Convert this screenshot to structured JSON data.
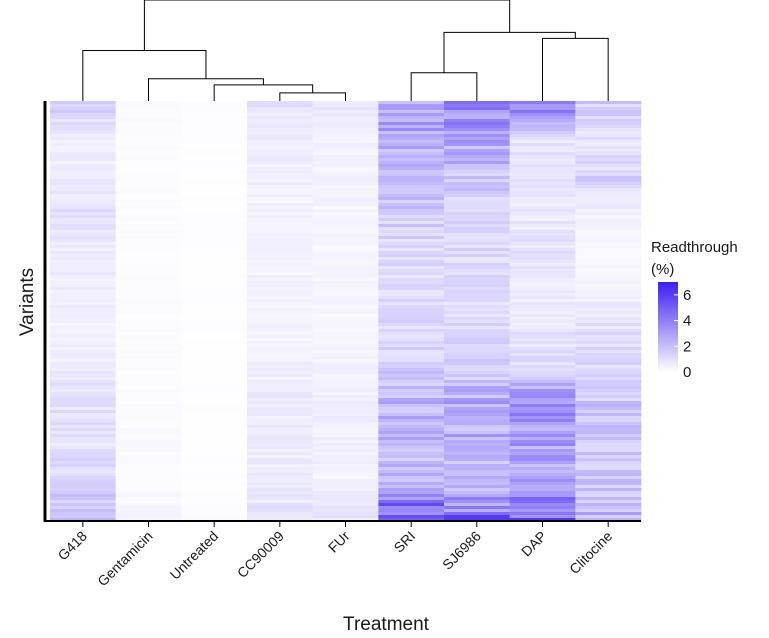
{
  "chart_data": {
    "type": "heatmap",
    "xlabel": "Treatment",
    "ylabel": "Variants",
    "categories": [
      "G418",
      "Gentamicin",
      "Untreated",
      "CC90009",
      "FUr",
      "SRI",
      "SJ6986",
      "DAP",
      "Clitocine"
    ],
    "legend": {
      "title_line1": "Readthrough",
      "title_line2": "(%)",
      "ticks": [
        6,
        4,
        2,
        0
      ],
      "range": [
        0,
        7
      ],
      "color_low": "#ffffff",
      "color_high": "#3b1ff0",
      "position": "right"
    },
    "row_count": 140,
    "series": [
      {
        "name": "G418",
        "mean_value": 0.7,
        "values_profile": [
          1.5,
          0.5,
          0.6,
          0.9,
          0.6,
          0.6,
          0.4,
          0.6,
          1.0,
          0.9,
          1.3,
          2.0
        ]
      },
      {
        "name": "Gentamicin",
        "mean_value": 0.1,
        "values_profile": [
          0.2,
          0.1,
          0.1,
          0.1,
          0.1,
          0.1,
          0.1,
          0.1,
          0.1,
          0.2,
          0.1,
          0.4
        ]
      },
      {
        "name": "Untreated",
        "mean_value": 0.05,
        "values_profile": [
          0.1,
          0.05,
          0.05,
          0.05,
          0.05,
          0.05,
          0.05,
          0.05,
          0.05,
          0.05,
          0.05,
          0.1
        ]
      },
      {
        "name": "CC90009",
        "mean_value": 0.5,
        "values_profile": [
          0.9,
          0.5,
          0.5,
          0.4,
          0.4,
          0.4,
          0.4,
          0.5,
          0.7,
          0.6,
          0.6,
          0.9
        ]
      },
      {
        "name": "FUr",
        "mean_value": 0.4,
        "values_profile": [
          0.8,
          0.4,
          0.4,
          0.3,
          0.3,
          0.3,
          0.3,
          0.4,
          0.5,
          0.5,
          0.4,
          0.8
        ]
      },
      {
        "name": "SRI",
        "mean_value": 2.0,
        "values_profile": [
          3.2,
          2.8,
          2.2,
          1.6,
          1.2,
          1.1,
          1.3,
          1.6,
          2.4,
          2.2,
          2.0,
          6.0
        ]
      },
      {
        "name": "SJ6986",
        "mean_value": 2.0,
        "values_profile": [
          3.4,
          3.0,
          1.8,
          1.4,
          1.2,
          1.0,
          1.2,
          1.4,
          2.8,
          2.4,
          2.0,
          4.8
        ]
      },
      {
        "name": "DAP",
        "mean_value": 1.6,
        "values_profile": [
          4.2,
          0.8,
          0.8,
          0.7,
          0.9,
          0.6,
          0.8,
          1.2,
          3.4,
          3.0,
          2.6,
          4.8
        ]
      },
      {
        "name": "Clitocine",
        "mean_value": 1.3,
        "values_profile": [
          1.6,
          0.8,
          1.4,
          0.4,
          0.2,
          0.4,
          1.0,
          1.2,
          1.8,
          1.8,
          1.8,
          2.4
        ]
      }
    ],
    "dendrogram": {
      "leaves": [
        "G418",
        "Gentamicin",
        "Untreated",
        "CC90009",
        "FUr",
        "SRI",
        "SJ6986",
        "DAP",
        "Clitocine"
      ],
      "merges": [
        {
          "left": "CC90009",
          "right": "FUr",
          "height": 0.08
        },
        {
          "left": "Untreated",
          "right": "CC90009+FUr",
          "height": 0.16
        },
        {
          "left": "Gentamicin",
          "right": "Untreated+CC90009+FUr",
          "height": 0.22
        },
        {
          "left": "G418",
          "right": "Gentamicin+Untreated+CC90009+FUr",
          "height": 0.5
        },
        {
          "left": "SRI",
          "right": "SJ6986",
          "height": 0.28
        },
        {
          "left": "DAP",
          "right": "Clitocine",
          "height": 0.62
        },
        {
          "left": "SRI+SJ6986",
          "right": "DAP+Clitocine",
          "height": 0.68
        },
        {
          "left": "group_left",
          "right": "group_right",
          "height": 1.0
        }
      ]
    }
  }
}
